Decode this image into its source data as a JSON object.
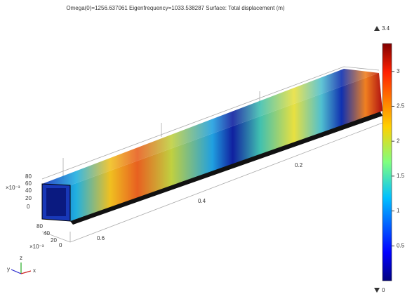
{
  "header": {
    "title": "Omega(0)=1256.637061  Eigenfrequency=1033.538287   Surface: Total displacement (m)"
  },
  "colorbar": {
    "max": 3.4,
    "min": 0,
    "ticks": [
      0.5,
      1,
      1.5,
      2,
      2.5,
      3
    ]
  },
  "axes": {
    "length_ticks": [
      "0.2",
      "0.4",
      "0.6"
    ],
    "height_ticks": [
      "80",
      "60",
      "40",
      "20",
      "0"
    ],
    "height_unit": "×10⁻³",
    "width_ticks": [
      "80",
      "40",
      "20",
      "0"
    ],
    "width_unit": "×10⁻³",
    "triad": [
      "y",
      "z",
      "x"
    ]
  }
}
